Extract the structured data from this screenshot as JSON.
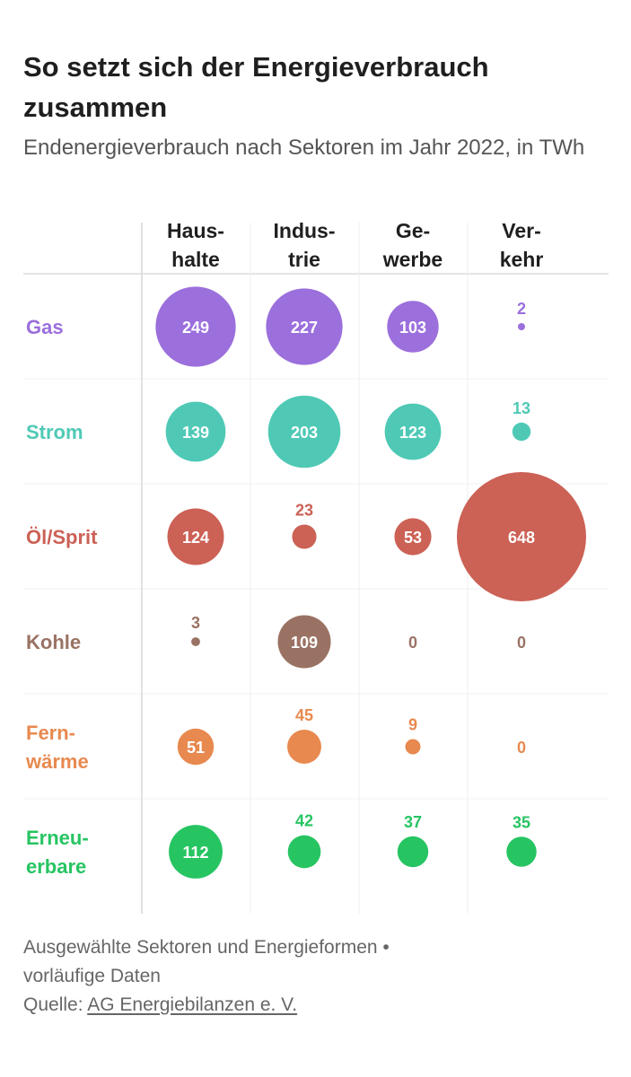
{
  "title": "So setzt sich der Energieverbrauch zusammen",
  "subtitle": "Endenergieverbrauch nach Sektoren im Jahr 2022, in TWh",
  "footer": {
    "note_line1": "Ausgewählte Sektoren und Energieformen •",
    "note_line2": "vorläufige Daten",
    "source_label": "Quelle: ",
    "source_link": "AG Energiebilanzen e. V."
  },
  "colors": {
    "Gas": "#9b6fdc",
    "Strom": "#4fc9b6",
    "Öl/Sprit": "#cc6156",
    "Kohle": "#9a7263",
    "Fernwärme": "#e8894f",
    "Erneuerbare": "#27c462"
  },
  "chart_data": {
    "type": "bubble-matrix",
    "columns": [
      {
        "name": "Haushalte",
        "lines": [
          "Haus-",
          "halte"
        ]
      },
      {
        "name": "Industrie",
        "lines": [
          "Indus-",
          "trie"
        ]
      },
      {
        "name": "Gewerbe",
        "lines": [
          "Ge-",
          "werbe"
        ]
      },
      {
        "name": "Verkehr",
        "lines": [
          "Ver-",
          "kehr"
        ]
      }
    ],
    "rows": [
      {
        "name": "Gas",
        "lines": [
          "Gas"
        ],
        "values": [
          249,
          227,
          103,
          2
        ]
      },
      {
        "name": "Strom",
        "lines": [
          "Strom"
        ],
        "values": [
          139,
          203,
          123,
          13
        ]
      },
      {
        "name": "Öl/Sprit",
        "lines": [
          "Öl/Sprit"
        ],
        "values": [
          124,
          23,
          53,
          648
        ]
      },
      {
        "name": "Kohle",
        "lines": [
          "Kohle"
        ],
        "values": [
          3,
          109,
          0,
          0
        ]
      },
      {
        "name": "Fernwärme",
        "lines": [
          "Fern-",
          "wärme"
        ],
        "values": [
          51,
          45,
          9,
          0
        ]
      },
      {
        "name": "Erneuerbare",
        "lines": [
          "Erneu-",
          "erbare"
        ],
        "values": [
          112,
          42,
          37,
          35
        ]
      }
    ],
    "unit": "TWh"
  }
}
